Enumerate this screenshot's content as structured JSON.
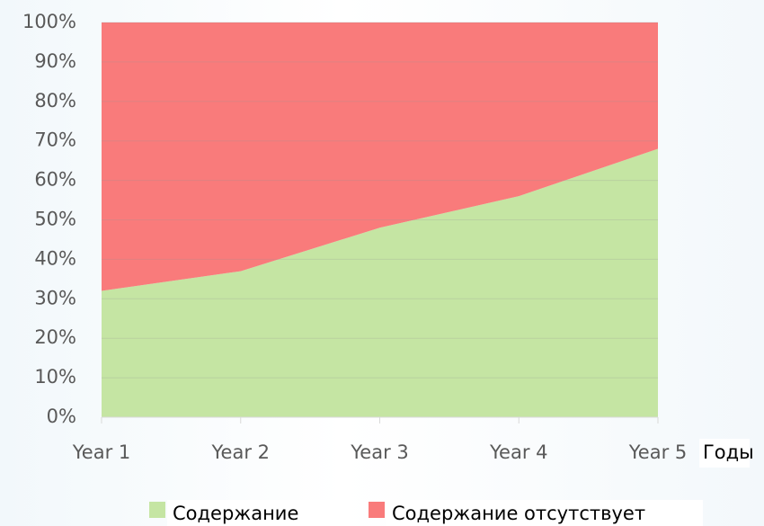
{
  "chart_data": {
    "type": "stacked_area_percent",
    "categories": [
      "Year 1",
      "Year 2",
      "Year 3",
      "Year 4",
      "Year 5"
    ],
    "x_label": "Годы",
    "series": [
      {
        "name": "Содержание",
        "color": "#c5e5a3",
        "values": [
          32,
          37,
          48,
          56,
          68
        ]
      },
      {
        "name": "Содержание отсутствует",
        "color": "#f97b7b",
        "values": [
          68,
          63,
          52,
          44,
          32
        ]
      }
    ],
    "ylim": [
      0,
      100
    ],
    "yticks": [
      {
        "value": 0,
        "label": "0%"
      },
      {
        "value": 10,
        "label": "10%"
      },
      {
        "value": 20,
        "label": "20%"
      },
      {
        "value": 30,
        "label": "30%"
      },
      {
        "value": 40,
        "label": "40%"
      },
      {
        "value": 50,
        "label": "50%"
      },
      {
        "value": 60,
        "label": "60%"
      },
      {
        "value": 70,
        "label": "70%"
      },
      {
        "value": 80,
        "label": "80%"
      },
      {
        "value": 90,
        "label": "90%"
      },
      {
        "value": 100,
        "label": "100%"
      }
    ],
    "grid": true,
    "legend": "bottom"
  }
}
